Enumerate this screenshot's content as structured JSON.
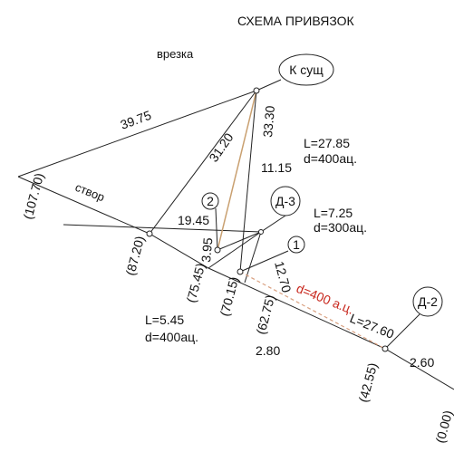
{
  "header": {
    "title": "СХЕМА ПРИВЯЗОК"
  },
  "labels": [
    "врезка",
    "К сущ",
    "39.75",
    "33.30",
    "31.20",
    "L=27.85",
    "d=400ац.",
    "11.15",
    "(107.70)",
    "створ",
    "2",
    "Д-3",
    "19.45",
    "L=7.25",
    "d=300ац.",
    "3.95",
    "1",
    "(87.20)",
    "(75.45)",
    "12.70",
    "(70.15)",
    "(62.75)",
    "d=400 а.ц.",
    "L=27.60",
    "Д-2",
    "L=5.45",
    "d=400ац.",
    "2.80",
    "2.60",
    "(42.55)",
    "(0.00)"
  ]
}
